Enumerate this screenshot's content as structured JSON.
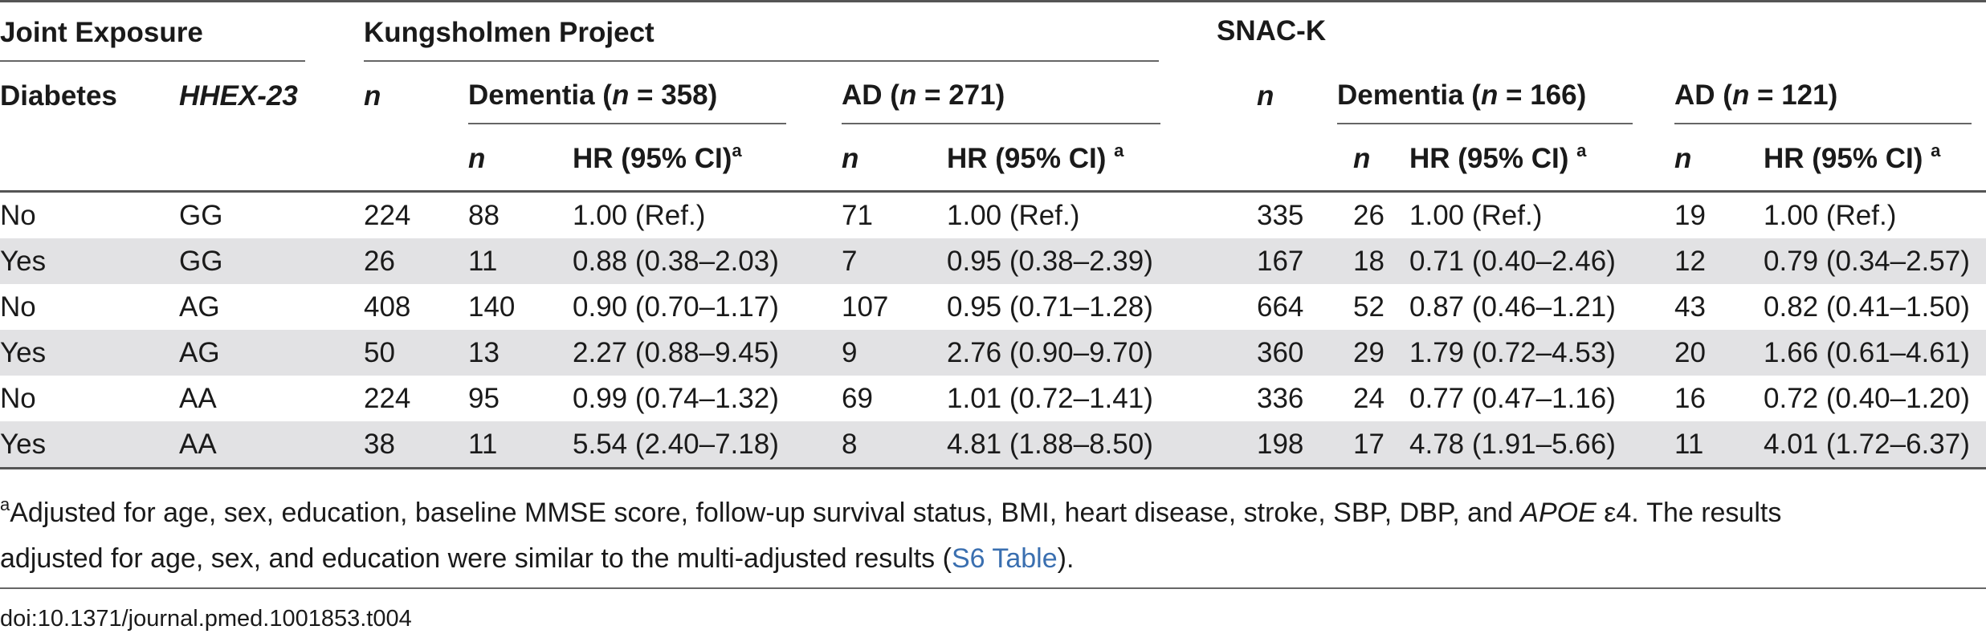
{
  "header": {
    "group_joint": "Joint Exposure",
    "group_kung": "Kungsholmen Project",
    "group_snac": "SNAC-K",
    "col_diabetes": "Diabetes",
    "col_hhex": "HHEX-23",
    "n": "n",
    "dementia_prefix": "Dementia (",
    "ad_prefix": "AD (",
    "eq": " = ",
    "close": ")",
    "kung_dementia_n": "358",
    "kung_ad_n": "271",
    "snac_dementia_n": "166",
    "snac_ad_n": "121",
    "hr": "HR (95% CI)",
    "hr_sp": "HR (95% CI) ",
    "sup_a": "a"
  },
  "rows": [
    {
      "diabetes": "No",
      "hhex": "GG",
      "k_n": "224",
      "k_dem_n": "88",
      "k_dem_hr": "1.00 (Ref.)",
      "k_ad_n": "71",
      "k_ad_hr": "1.00 (Ref.)",
      "s_n": "335",
      "s_dem_n": "26",
      "s_dem_hr": "1.00 (Ref.)",
      "s_ad_n": "19",
      "s_ad_hr": "1.00 (Ref.)"
    },
    {
      "diabetes": "Yes",
      "hhex": "GG",
      "k_n": "26",
      "k_dem_n": "11",
      "k_dem_hr": "0.88 (0.38–2.03)",
      "k_ad_n": "7",
      "k_ad_hr": "0.95 (0.38–2.39)",
      "s_n": "167",
      "s_dem_n": "18",
      "s_dem_hr": "0.71 (0.40–2.46)",
      "s_ad_n": "12",
      "s_ad_hr": "0.79 (0.34–2.57)"
    },
    {
      "diabetes": "No",
      "hhex": "AG",
      "k_n": "408",
      "k_dem_n": "140",
      "k_dem_hr": "0.90 (0.70–1.17)",
      "k_ad_n": "107",
      "k_ad_hr": "0.95 (0.71–1.28)",
      "s_n": "664",
      "s_dem_n": "52",
      "s_dem_hr": "0.87 (0.46–1.21)",
      "s_ad_n": "43",
      "s_ad_hr": "0.82 (0.41–1.50)"
    },
    {
      "diabetes": "Yes",
      "hhex": "AG",
      "k_n": "50",
      "k_dem_n": "13",
      "k_dem_hr": "2.27 (0.88–9.45)",
      "k_ad_n": "9",
      "k_ad_hr": "2.76 (0.90–9.70)",
      "s_n": "360",
      "s_dem_n": "29",
      "s_dem_hr": "1.79 (0.72–4.53)",
      "s_ad_n": "20",
      "s_ad_hr": "1.66 (0.61–4.61)"
    },
    {
      "diabetes": "No",
      "hhex": "AA",
      "k_n": "224",
      "k_dem_n": "95",
      "k_dem_hr": "0.99 (0.74–1.32)",
      "k_ad_n": "69",
      "k_ad_hr": "1.01 (0.72–1.41)",
      "s_n": "336",
      "s_dem_n": "24",
      "s_dem_hr": "0.77 (0.47–1.16)",
      "s_ad_n": "16",
      "s_ad_hr": "0.72 (0.40–1.20)"
    },
    {
      "diabetes": "Yes",
      "hhex": "AA",
      "k_n": "38",
      "k_dem_n": "11",
      "k_dem_hr": "5.54 (2.40–7.18)",
      "k_ad_n": "8",
      "k_ad_hr": "4.81 (1.88–8.50)",
      "s_n": "198",
      "s_dem_n": "17",
      "s_dem_hr": "4.78 (1.91–5.66)",
      "s_ad_n": "11",
      "s_ad_hr": "4.01 (1.72–6.37)"
    }
  ],
  "footnote": {
    "sup": "a",
    "text1": "Adjusted for age, sex, education, baseline MMSE score, follow-up survival status, BMI, heart disease, stroke, SBP, DBP, and ",
    "apoe": "APOE",
    "text2": " ε4. The results",
    "text3": "adjusted for age, sex, and education were similar to the multi-adjusted results (",
    "link": "S6 Table",
    "text4": ")."
  },
  "doi": "doi:10.1371/journal.pmed.1001853.t004",
  "colors": {
    "row_shade": "#e2e2e4",
    "link": "#3a6fb0",
    "rule": "#555555"
  }
}
